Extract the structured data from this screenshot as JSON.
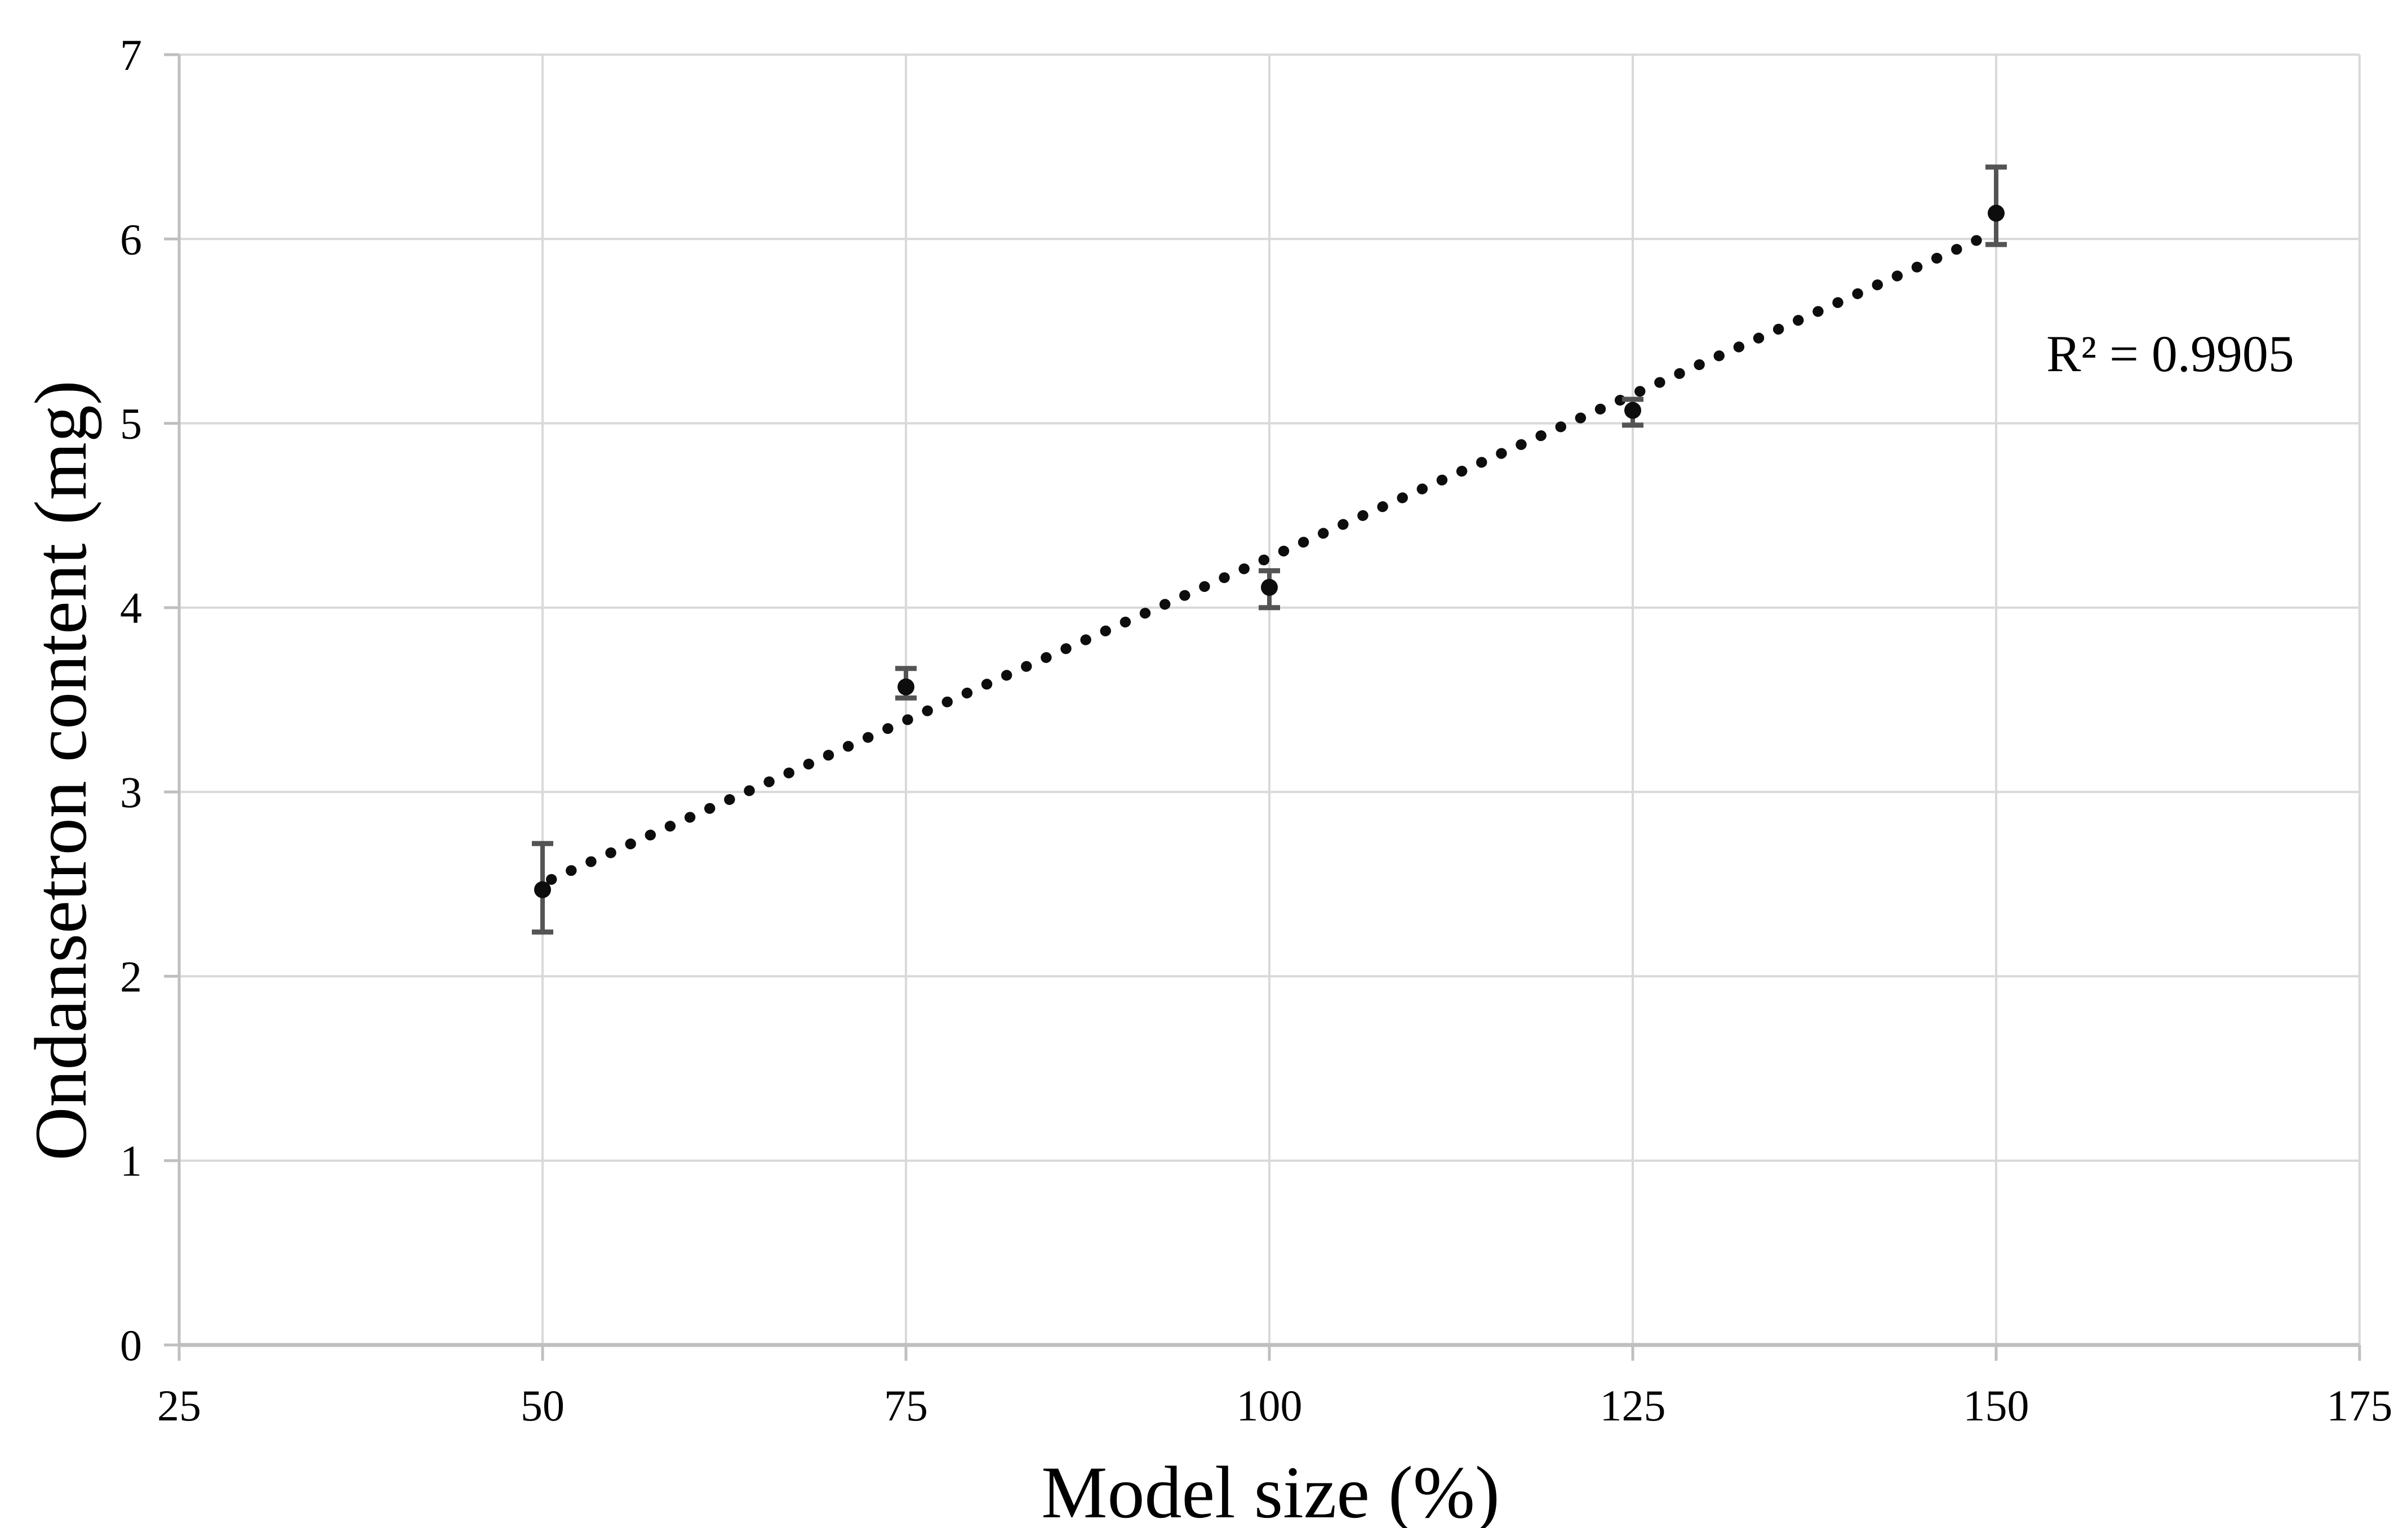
{
  "figure": {
    "x_axis_title": "Model size (%)",
    "y_axis_title": "Ondansetron content (mg)",
    "annotation": "R² = 0.9905"
  },
  "colors": {
    "background": "#ffffff",
    "gridline": "#d9d9d9",
    "axis_line": "#bfbfbf",
    "tick": "#bfbfbf",
    "tick_label": "#000000",
    "marker": "#0d0d0d",
    "error_bar": "#545454",
    "trendline": "#0d0d0d"
  },
  "chart_data": {
    "type": "scatter",
    "title": "",
    "xlabel": "Model size (%)",
    "ylabel": "Ondansetron content (mg)",
    "xlim": [
      25,
      175
    ],
    "ylim": [
      0,
      7
    ],
    "x_ticks": [
      25,
      50,
      75,
      100,
      125,
      150,
      175
    ],
    "y_ticks": [
      0,
      1,
      2,
      3,
      4,
      5,
      6,
      7
    ],
    "grid": true,
    "legend": false,
    "annotation": {
      "text": "R² = 0.9905",
      "x": 162,
      "y": 5.37
    },
    "series": [
      {
        "name": "Ondansetron content",
        "marker": "filled-circle",
        "x": [
          50,
          75,
          100,
          125,
          150
        ],
        "y": [
          2.47,
          3.57,
          4.11,
          5.07,
          6.14
        ],
        "err_up": [
          0.25,
          0.1,
          0.09,
          0.06,
          0.25
        ],
        "err_down": [
          0.23,
          0.06,
          0.11,
          0.08,
          0.17
        ]
      }
    ],
    "trendline": {
      "type": "linear",
      "style": "dotted",
      "slope": 0.03536,
      "intercept": 0.736,
      "x_start": 50.6,
      "x_end": 149.5,
      "r_squared": 0.9905
    }
  }
}
